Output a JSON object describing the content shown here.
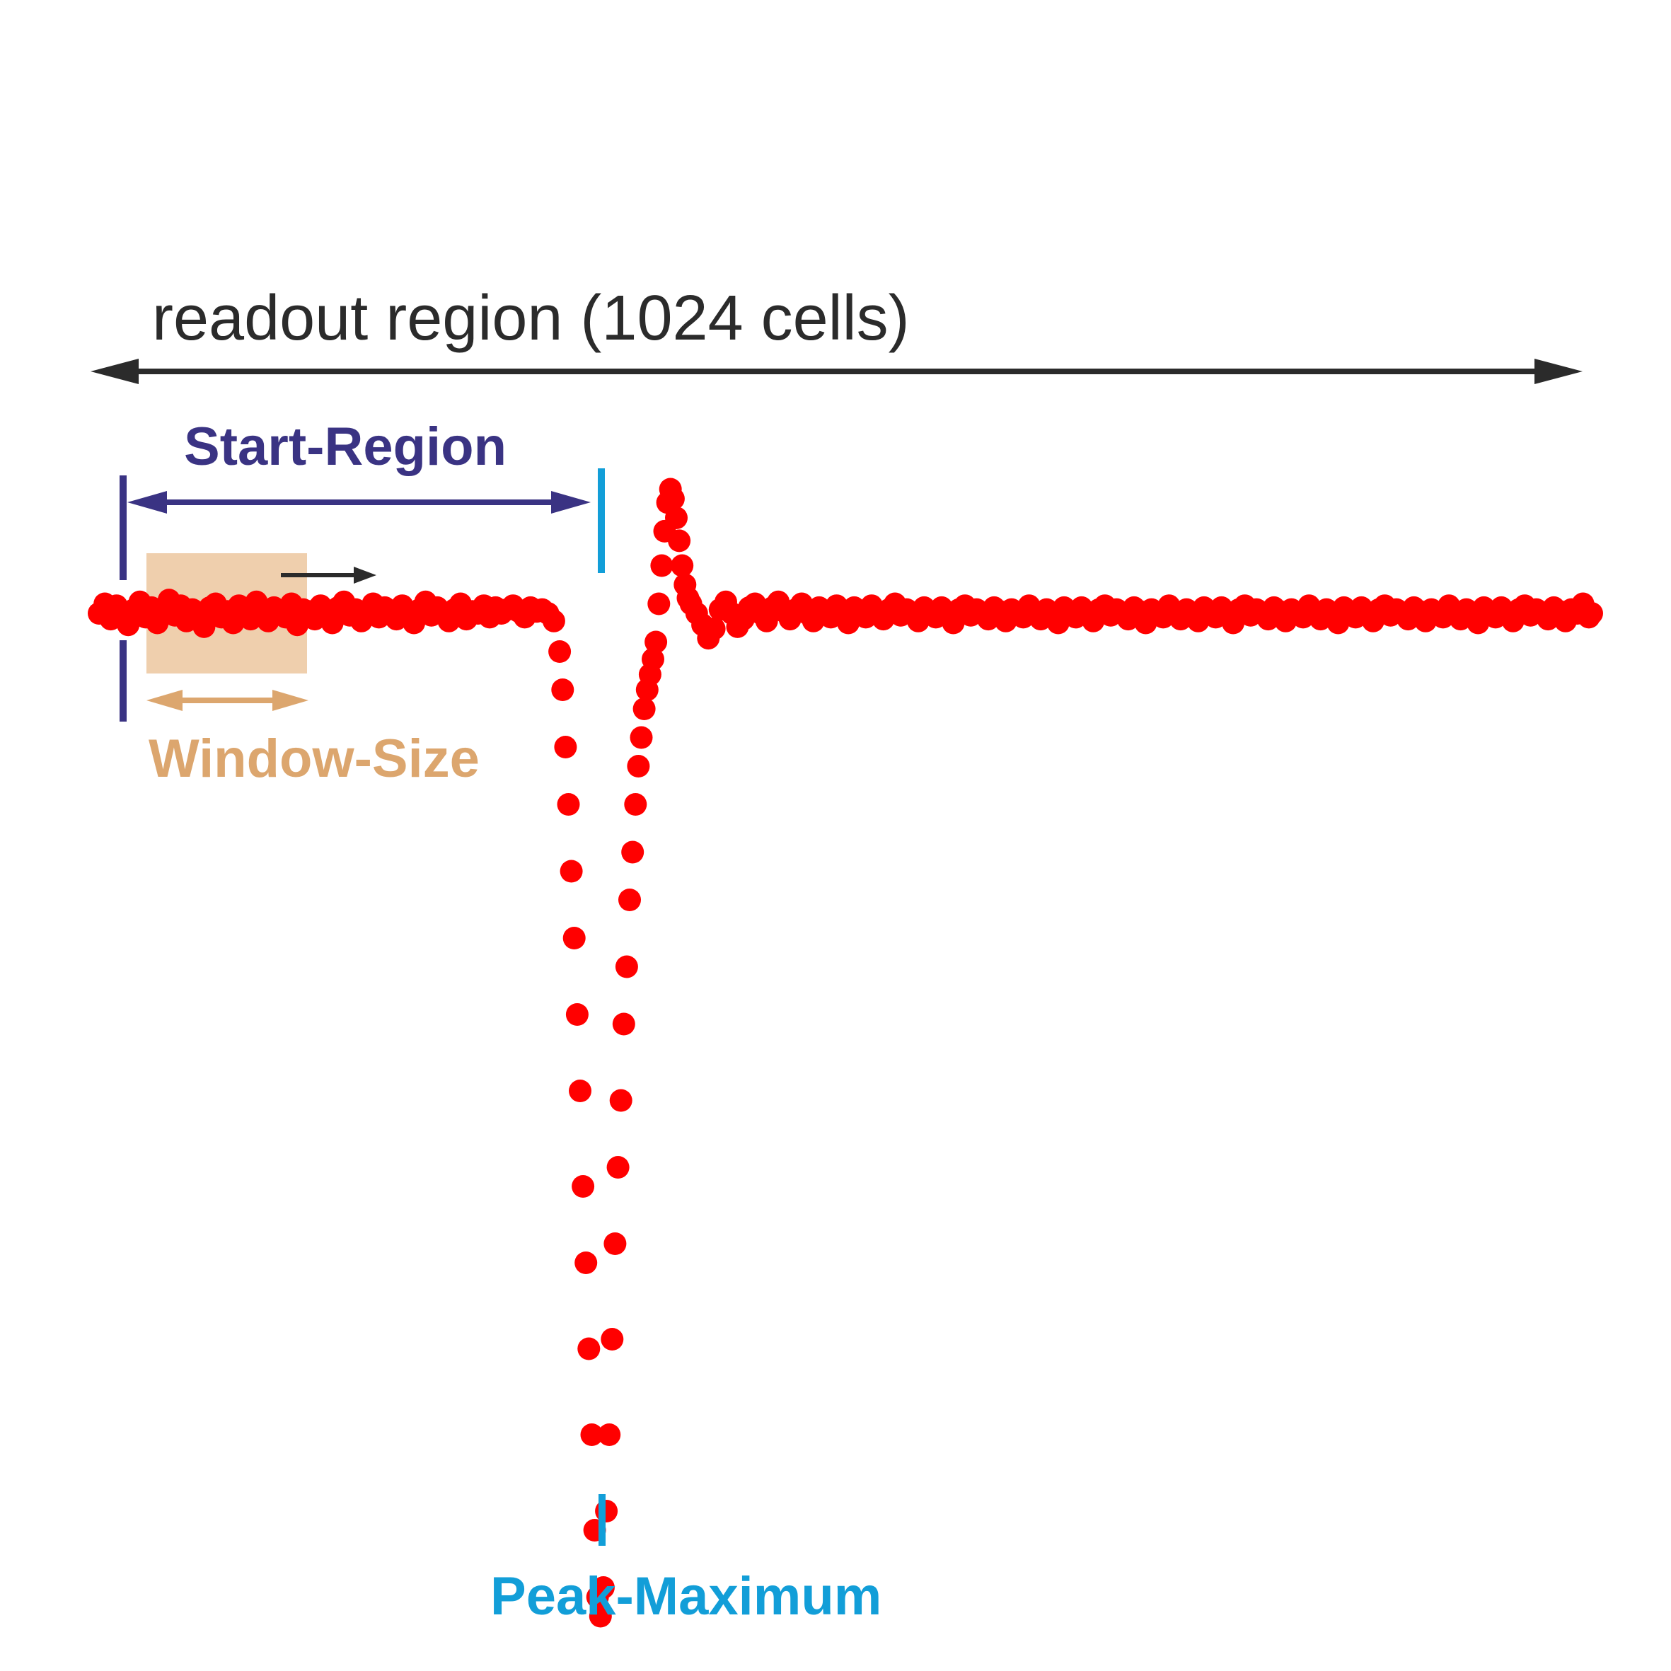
{
  "labels": {
    "readout_region": "readout region (1024 cells)",
    "start_region": "Start-Region",
    "window_size": "Window-Size",
    "peak_maximum": "Peak-Maximum"
  },
  "colors": {
    "readout_arrow": "#2b2b2b",
    "start_region": "#3a3383",
    "window_size": "#dca66e",
    "window_fill": "#efcfad",
    "peak_maximum": "#129ed8",
    "signal": "#ff0000"
  },
  "chart_data": {
    "type": "scatter",
    "x_range": [
      0,
      1024
    ],
    "baseline": 0,
    "series": [
      {
        "points": [
          [
            0,
            0.0
          ],
          [
            4,
            0.5
          ],
          [
            8,
            -0.3
          ],
          [
            12,
            0.4
          ],
          [
            16,
            0.0
          ],
          [
            20,
            -0.6
          ],
          [
            24,
            0.2
          ],
          [
            28,
            0.6
          ],
          [
            32,
            -0.2
          ],
          [
            36,
            0.3
          ],
          [
            40,
            -0.5
          ],
          [
            44,
            0.1
          ],
          [
            48,
            0.7
          ],
          [
            52,
            -0.1
          ],
          [
            56,
            0.4
          ],
          [
            60,
            -0.4
          ],
          [
            64,
            0.2
          ],
          [
            68,
            0.0
          ],
          [
            72,
            -0.7
          ],
          [
            76,
            0.3
          ],
          [
            80,
            0.5
          ],
          [
            84,
            -0.2
          ],
          [
            88,
            0.1
          ],
          [
            92,
            -0.5
          ],
          [
            96,
            0.4
          ],
          [
            100,
            0.0
          ],
          [
            104,
            -0.3
          ],
          [
            108,
            0.6
          ],
          [
            112,
            0.1
          ],
          [
            116,
            -0.4
          ],
          [
            120,
            0.3
          ],
          [
            124,
            0.0
          ],
          [
            128,
            -0.2
          ],
          [
            132,
            0.5
          ],
          [
            136,
            -0.6
          ],
          [
            140,
            0.2
          ],
          [
            144,
            0.1
          ],
          [
            148,
            -0.3
          ],
          [
            152,
            0.4
          ],
          [
            156,
            0.0
          ],
          [
            160,
            -0.5
          ],
          [
            164,
            0.3
          ],
          [
            168,
            0.6
          ],
          [
            172,
            -0.1
          ],
          [
            176,
            0.2
          ],
          [
            180,
            -0.4
          ],
          [
            184,
            0.1
          ],
          [
            188,
            0.5
          ],
          [
            192,
            -0.2
          ],
          [
            196,
            0.3
          ],
          [
            200,
            0.0
          ],
          [
            204,
            -0.3
          ],
          [
            208,
            0.4
          ],
          [
            212,
            0.1
          ],
          [
            216,
            -0.5
          ],
          [
            220,
            0.2
          ],
          [
            224,
            0.6
          ],
          [
            228,
            -0.1
          ],
          [
            232,
            0.3
          ],
          [
            236,
            0.0
          ],
          [
            240,
            -0.4
          ],
          [
            244,
            0.2
          ],
          [
            248,
            0.5
          ],
          [
            252,
            -0.3
          ],
          [
            256,
            0.1
          ],
          [
            260,
            0.0
          ],
          [
            264,
            0.4
          ],
          [
            268,
            -0.2
          ],
          [
            272,
            0.3
          ],
          [
            276,
            0.0
          ],
          [
            280,
            0.2
          ],
          [
            284,
            0.4
          ],
          [
            288,
            0.1
          ],
          [
            292,
            -0.2
          ],
          [
            296,
            0.3
          ],
          [
            300,
            0.1
          ],
          [
            304,
            0.2
          ],
          [
            308,
            0.0
          ],
          [
            312,
            -0.4
          ],
          [
            316,
            -2.0
          ],
          [
            318,
            -4.0
          ],
          [
            320,
            -7.0
          ],
          [
            322,
            -10.0
          ],
          [
            324,
            -13.5
          ],
          [
            326,
            -17.0
          ],
          [
            328,
            -21.0
          ],
          [
            330,
            -25.0
          ],
          [
            332,
            -30.0
          ],
          [
            334,
            -34.0
          ],
          [
            336,
            -38.5
          ],
          [
            338,
            -43.0
          ],
          [
            340,
            -48.0
          ],
          [
            342,
            -51.5
          ],
          [
            344,
            -52.5
          ],
          [
            346,
            -51.0
          ],
          [
            348,
            -47.0
          ],
          [
            350,
            -43.0
          ],
          [
            352,
            -38.0
          ],
          [
            354,
            -33.0
          ],
          [
            356,
            -29.0
          ],
          [
            358,
            -25.5
          ],
          [
            360,
            -21.5
          ],
          [
            362,
            -18.5
          ],
          [
            364,
            -15.0
          ],
          [
            366,
            -12.5
          ],
          [
            368,
            -10.0
          ],
          [
            370,
            -8.0
          ],
          [
            372,
            -6.5
          ],
          [
            374,
            -5.0
          ],
          [
            376,
            -4.0
          ],
          [
            378,
            -3.2
          ],
          [
            380,
            -2.4
          ],
          [
            382,
            -1.5
          ],
          [
            384,
            0.5
          ],
          [
            386,
            2.5
          ],
          [
            388,
            4.3
          ],
          [
            390,
            5.8
          ],
          [
            392,
            6.5
          ],
          [
            394,
            6.0
          ],
          [
            396,
            5.0
          ],
          [
            398,
            3.8
          ],
          [
            400,
            2.5
          ],
          [
            402,
            1.5
          ],
          [
            404,
            0.8
          ],
          [
            406,
            0.5
          ],
          [
            410,
            0.0
          ],
          [
            414,
            -0.6
          ],
          [
            418,
            -1.3
          ],
          [
            422,
            -0.8
          ],
          [
            426,
            0.2
          ],
          [
            430,
            0.6
          ],
          [
            434,
            0.0
          ],
          [
            438,
            -0.7
          ],
          [
            442,
            -0.3
          ],
          [
            446,
            0.3
          ],
          [
            450,
            0.5
          ],
          [
            454,
            0.0
          ],
          [
            458,
            -0.4
          ],
          [
            462,
            0.3
          ],
          [
            466,
            0.6
          ],
          [
            470,
            0.1
          ],
          [
            474,
            -0.3
          ],
          [
            478,
            0.2
          ],
          [
            482,
            0.5
          ],
          [
            486,
            0.0
          ],
          [
            490,
            -0.4
          ],
          [
            494,
            0.3
          ],
          [
            498,
            0.1
          ],
          [
            502,
            -0.2
          ],
          [
            506,
            0.4
          ],
          [
            510,
            0.0
          ],
          [
            514,
            -0.5
          ],
          [
            518,
            0.3
          ],
          [
            522,
            0.1
          ],
          [
            526,
            -0.2
          ],
          [
            530,
            0.4
          ],
          [
            534,
            0.0
          ],
          [
            538,
            -0.3
          ],
          [
            542,
            0.2
          ],
          [
            546,
            0.5
          ],
          [
            550,
            -0.1
          ],
          [
            554,
            0.2
          ],
          [
            558,
            0.0
          ],
          [
            562,
            -0.4
          ],
          [
            566,
            0.3
          ],
          [
            570,
            0.1
          ],
          [
            574,
            -0.2
          ],
          [
            578,
            0.3
          ],
          [
            582,
            0.0
          ],
          [
            586,
            -0.5
          ],
          [
            590,
            0.2
          ],
          [
            594,
            0.4
          ],
          [
            598,
            -0.1
          ],
          [
            602,
            0.2
          ],
          [
            606,
            0.0
          ],
          [
            610,
            -0.3
          ],
          [
            614,
            0.3
          ],
          [
            618,
            0.1
          ],
          [
            622,
            -0.4
          ],
          [
            626,
            0.2
          ],
          [
            630,
            0.0
          ],
          [
            634,
            -0.2
          ],
          [
            638,
            0.4
          ],
          [
            642,
            0.1
          ],
          [
            646,
            -0.3
          ],
          [
            650,
            0.2
          ],
          [
            654,
            0.0
          ],
          [
            658,
            -0.5
          ],
          [
            662,
            0.3
          ],
          [
            666,
            0.1
          ],
          [
            670,
            -0.2
          ],
          [
            674,
            0.3
          ],
          [
            678,
            0.0
          ],
          [
            682,
            -0.4
          ],
          [
            686,
            0.2
          ],
          [
            690,
            0.4
          ],
          [
            694,
            -0.1
          ],
          [
            698,
            0.2
          ],
          [
            702,
            0.0
          ],
          [
            706,
            -0.3
          ],
          [
            710,
            0.3
          ],
          [
            714,
            0.1
          ],
          [
            718,
            -0.5
          ],
          [
            722,
            0.2
          ],
          [
            726,
            0.0
          ],
          [
            730,
            -0.2
          ],
          [
            734,
            0.4
          ],
          [
            738,
            0.1
          ],
          [
            742,
            -0.3
          ],
          [
            746,
            0.2
          ],
          [
            750,
            0.0
          ],
          [
            754,
            -0.4
          ],
          [
            758,
            0.3
          ],
          [
            762,
            0.1
          ],
          [
            766,
            -0.2
          ],
          [
            770,
            0.3
          ],
          [
            774,
            0.0
          ],
          [
            778,
            -0.5
          ],
          [
            782,
            0.2
          ],
          [
            786,
            0.4
          ],
          [
            790,
            -0.1
          ],
          [
            794,
            0.2
          ],
          [
            798,
            0.0
          ],
          [
            802,
            -0.3
          ],
          [
            806,
            0.3
          ],
          [
            810,
            0.1
          ],
          [
            814,
            -0.4
          ],
          [
            818,
            0.2
          ],
          [
            822,
            0.0
          ],
          [
            826,
            -0.2
          ],
          [
            830,
            0.4
          ],
          [
            834,
            0.1
          ],
          [
            838,
            -0.3
          ],
          [
            842,
            0.2
          ],
          [
            846,
            0.0
          ],
          [
            850,
            -0.5
          ],
          [
            854,
            0.3
          ],
          [
            858,
            0.1
          ],
          [
            862,
            -0.2
          ],
          [
            866,
            0.3
          ],
          [
            870,
            0.0
          ],
          [
            874,
            -0.4
          ],
          [
            878,
            0.2
          ],
          [
            882,
            0.4
          ],
          [
            886,
            -0.1
          ],
          [
            890,
            0.2
          ],
          [
            894,
            0.0
          ],
          [
            898,
            -0.3
          ],
          [
            902,
            0.3
          ],
          [
            906,
            0.1
          ],
          [
            910,
            -0.4
          ],
          [
            914,
            0.2
          ],
          [
            918,
            0.0
          ],
          [
            922,
            -0.2
          ],
          [
            926,
            0.4
          ],
          [
            930,
            0.1
          ],
          [
            934,
            -0.3
          ],
          [
            938,
            0.2
          ],
          [
            942,
            0.0
          ],
          [
            946,
            -0.5
          ],
          [
            950,
            0.3
          ],
          [
            954,
            0.1
          ],
          [
            958,
            -0.2
          ],
          [
            962,
            0.3
          ],
          [
            966,
            0.0
          ],
          [
            970,
            -0.4
          ],
          [
            974,
            0.2
          ],
          [
            978,
            0.4
          ],
          [
            982,
            -0.1
          ],
          [
            986,
            0.2
          ],
          [
            990,
            0.0
          ],
          [
            994,
            -0.3
          ],
          [
            998,
            0.3
          ],
          [
            1002,
            0.1
          ],
          [
            1006,
            -0.4
          ],
          [
            1010,
            0.2
          ],
          [
            1014,
            0.0
          ],
          [
            1018,
            0.5
          ],
          [
            1022,
            -0.2
          ],
          [
            1024,
            0.0
          ]
        ]
      }
    ],
    "regions": {
      "readout": [
        0,
        1024
      ],
      "start_region": [
        20,
        340
      ],
      "window_size": [
        40,
        148
      ],
      "peak_maximum_x": 340
    }
  }
}
